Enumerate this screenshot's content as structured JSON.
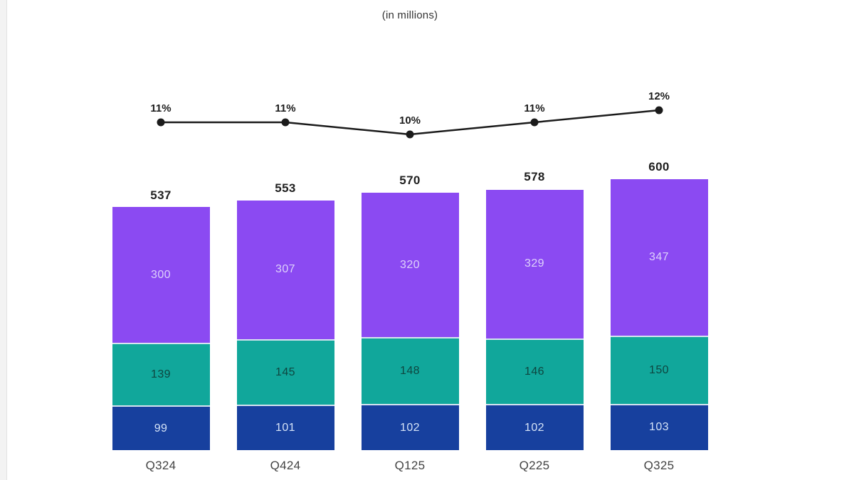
{
  "page": {
    "title": "(in millions)"
  },
  "chart_data": {
    "type": "bar",
    "subtype": "stacked-column-with-trend-line",
    "title": "(in millions)",
    "categories": [
      "Q324",
      "Q424",
      "Q125",
      "Q225",
      "Q325"
    ],
    "series": [
      {
        "name": "segment-navy",
        "color": "#17409e",
        "label_color": "#d5e3f7",
        "values": [
          99,
          101,
          102,
          102,
          103
        ]
      },
      {
        "name": "segment-teal",
        "color": "#11a79b",
        "label_color": "#0e4640",
        "values": [
          139,
          145,
          148,
          146,
          150
        ]
      },
      {
        "name": "segment-purple",
        "color": "#8b4af2",
        "label_color": "#ded2fb",
        "values": [
          300,
          307,
          320,
          329,
          347
        ]
      }
    ],
    "totals": [
      537,
      553,
      570,
      578,
      600
    ],
    "line_series": {
      "name": "percent-trend",
      "color": "#1b1b1b",
      "values": [
        11,
        11,
        10,
        11,
        12
      ],
      "labels": [
        "11%",
        "11%",
        "10%",
        "11%",
        "12%"
      ]
    },
    "legend": "none",
    "gridlines": false,
    "ylim": [
      0,
      600
    ]
  }
}
